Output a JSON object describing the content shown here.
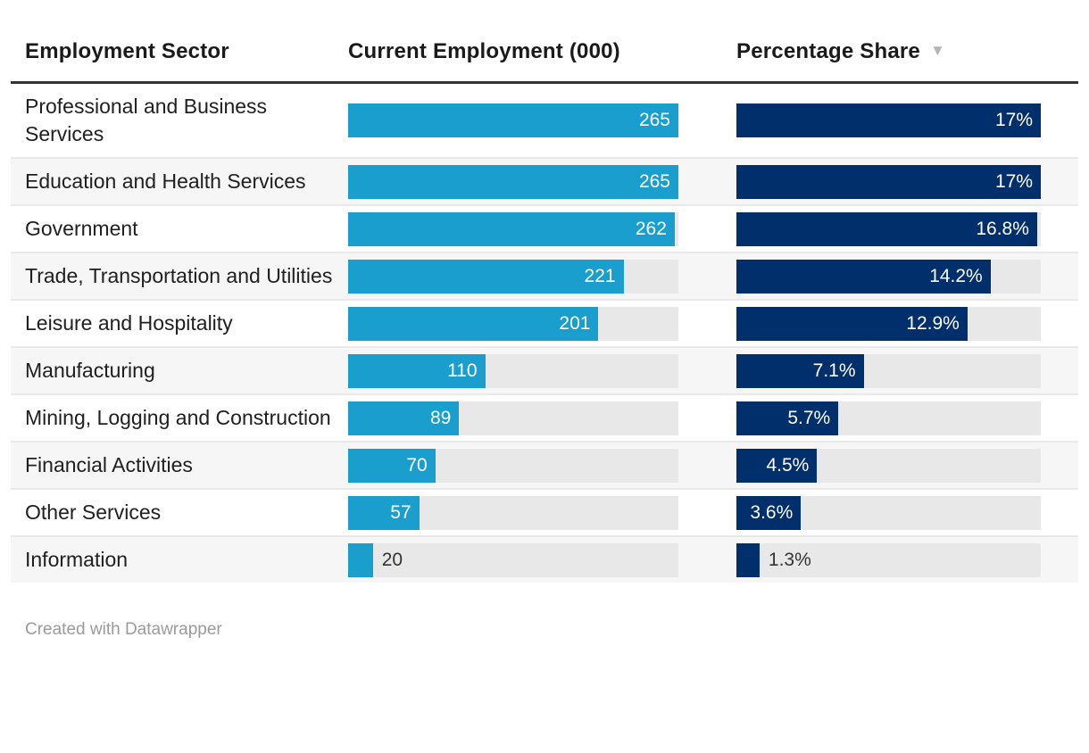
{
  "header": {
    "sector": "Employment Sector",
    "employment": "Current Employment (000)",
    "share": "Percentage Share",
    "sort_icon": "▼"
  },
  "rows": [
    {
      "sector": "Professional and Business Services",
      "employment": "265",
      "employment_pct": 100,
      "share": "17%",
      "share_pct": 100,
      "emp_inside": true,
      "share_inside": true
    },
    {
      "sector": "Education and Health Services",
      "employment": "265",
      "employment_pct": 100,
      "share": "17%",
      "share_pct": 100,
      "emp_inside": true,
      "share_inside": true
    },
    {
      "sector": "Government",
      "employment": "262",
      "employment_pct": 98.9,
      "share": "16.8%",
      "share_pct": 98.8,
      "emp_inside": true,
      "share_inside": true
    },
    {
      "sector": "Trade, Transportation and Utilities",
      "employment": "221",
      "employment_pct": 83.4,
      "share": "14.2%",
      "share_pct": 83.5,
      "emp_inside": true,
      "share_inside": true
    },
    {
      "sector": "Leisure and Hospitality",
      "employment": "201",
      "employment_pct": 75.8,
      "share": "12.9%",
      "share_pct": 75.9,
      "emp_inside": true,
      "share_inside": true
    },
    {
      "sector": "Manufacturing",
      "employment": "110",
      "employment_pct": 41.5,
      "share": "7.1%",
      "share_pct": 41.8,
      "emp_inside": true,
      "share_inside": true
    },
    {
      "sector": "Mining, Logging and Construction",
      "employment": "89",
      "employment_pct": 33.6,
      "share": "5.7%",
      "share_pct": 33.5,
      "emp_inside": true,
      "share_inside": true
    },
    {
      "sector": "Financial Activities",
      "employment": "70",
      "employment_pct": 26.4,
      "share": "4.5%",
      "share_pct": 26.5,
      "emp_inside": true,
      "share_inside": true
    },
    {
      "sector": "Other Services",
      "employment": "57",
      "employment_pct": 21.5,
      "share": "3.6%",
      "share_pct": 21.2,
      "emp_inside": true,
      "share_inside": true
    },
    {
      "sector": "Information",
      "employment": "20",
      "employment_pct": 7.5,
      "share": "1.3%",
      "share_pct": 7.6,
      "emp_inside": false,
      "share_inside": false
    }
  ],
  "footer": {
    "credit": "Created with Datawrapper"
  },
  "colors": {
    "employment_bar": "#1a9ecd",
    "share_bar": "#002f6c",
    "bar_track": "#e8e8e8",
    "row_stripe": "#f6f6f6",
    "header_rule": "#333333",
    "sort_icon": "#b5b5b5",
    "value_inside": "#ffffff",
    "value_outside": "#333333"
  },
  "chart_data": {
    "type": "table",
    "title": "",
    "categories": [
      "Professional and Business Services",
      "Education and Health Services",
      "Government",
      "Trade, Transportation and Utilities",
      "Leisure and Hospitality",
      "Manufacturing",
      "Mining, Logging and Construction",
      "Financial Activities",
      "Other Services",
      "Information"
    ],
    "series": [
      {
        "name": "Current Employment (000)",
        "type": "bar",
        "values": [
          265,
          265,
          262,
          221,
          201,
          110,
          89,
          70,
          57,
          20
        ],
        "max": 265,
        "color": "#1a9ecd"
      },
      {
        "name": "Percentage Share",
        "type": "bar",
        "unit": "%",
        "values": [
          17,
          17,
          16.8,
          14.2,
          12.9,
          7.1,
          5.7,
          4.5,
          3.6,
          1.3
        ],
        "max": 17,
        "color": "#002f6c"
      }
    ],
    "sort": {
      "column": "Percentage Share",
      "direction": "descending"
    },
    "legend_position": "none",
    "grid": false
  }
}
